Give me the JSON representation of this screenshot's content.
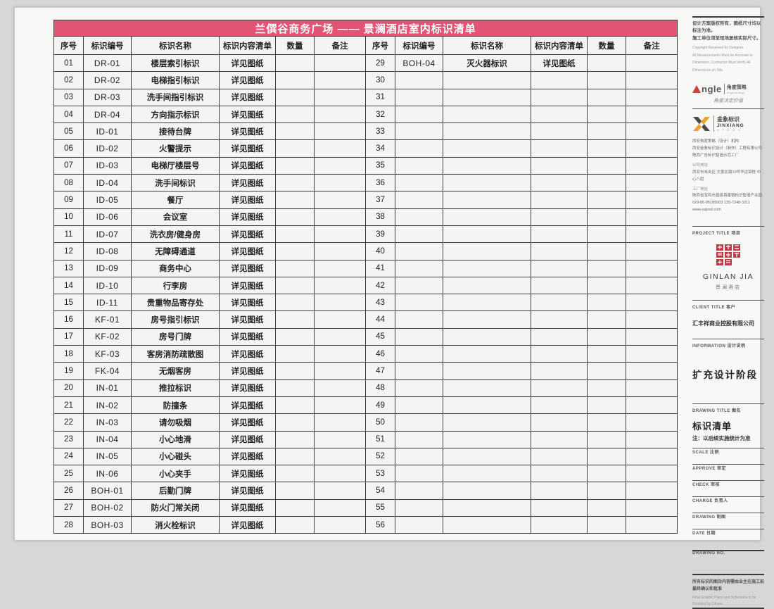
{
  "title": "兰僎谷商务广场 —— 景澜酒店室内标识清单",
  "table": {
    "columns": [
      "序号",
      "标识编号",
      "标识名称",
      "标识内容清单",
      "数量",
      "备注"
    ],
    "left_rows": [
      {
        "no": "01",
        "code": "DR-01",
        "name": "楼层索引标识",
        "content": "详见图纸"
      },
      {
        "no": "02",
        "code": "DR-02",
        "name": "电梯指引标识",
        "content": "详见图纸"
      },
      {
        "no": "03",
        "code": "DR-03",
        "name": "洗手间指引标识",
        "content": "详见图纸"
      },
      {
        "no": "04",
        "code": "DR-04",
        "name": "方向指示标识",
        "content": "详见图纸"
      },
      {
        "no": "05",
        "code": "ID-01",
        "name": "接待台牌",
        "content": "详见图纸"
      },
      {
        "no": "06",
        "code": "ID-02",
        "name": "火警提示",
        "content": "详见图纸"
      },
      {
        "no": "07",
        "code": "ID-03",
        "name": "电梯厅楼层号",
        "content": "详见图纸"
      },
      {
        "no": "08",
        "code": "ID-04",
        "name": "洗手间标识",
        "content": "详见图纸"
      },
      {
        "no": "09",
        "code": "ID-05",
        "name": "餐厅",
        "content": "详见图纸"
      },
      {
        "no": "10",
        "code": "ID-06",
        "name": "会议室",
        "content": "详见图纸"
      },
      {
        "no": "11",
        "code": "ID-07",
        "name": "洗衣房/健身房",
        "content": "详见图纸"
      },
      {
        "no": "12",
        "code": "ID-08",
        "name": "无障碍通道",
        "content": "详见图纸"
      },
      {
        "no": "13",
        "code": "ID-09",
        "name": "商务中心",
        "content": "详见图纸"
      },
      {
        "no": "14",
        "code": "ID-10",
        "name": "行李房",
        "content": "详见图纸"
      },
      {
        "no": "15",
        "code": "ID-11",
        "name": "贵重物品寄存处",
        "content": "详见图纸"
      },
      {
        "no": "16",
        "code": "KF-01",
        "name": "房号指引标识",
        "content": "详见图纸"
      },
      {
        "no": "17",
        "code": "KF-02",
        "name": "房号门牌",
        "content": "详见图纸"
      },
      {
        "no": "18",
        "code": "KF-03",
        "name": "客房消防疏散图",
        "content": "详见图纸"
      },
      {
        "no": "19",
        "code": "FK-04",
        "name": "无烟客房",
        "content": "详见图纸"
      },
      {
        "no": "20",
        "code": "IN-01",
        "name": "推拉标识",
        "content": "详见图纸"
      },
      {
        "no": "21",
        "code": "IN-02",
        "name": "防撞条",
        "content": "详见图纸"
      },
      {
        "no": "22",
        "code": "IN-03",
        "name": "请勿吸烟",
        "content": "详见图纸"
      },
      {
        "no": "23",
        "code": "IN-04",
        "name": "小心地滑",
        "content": "详见图纸"
      },
      {
        "no": "24",
        "code": "IN-05",
        "name": "小心碰头",
        "content": "详见图纸"
      },
      {
        "no": "25",
        "code": "IN-06",
        "name": "小心夹手",
        "content": "详见图纸"
      },
      {
        "no": "26",
        "code": "BOH-01",
        "name": "后勤门牌",
        "content": "详见图纸"
      },
      {
        "no": "27",
        "code": "BOH-02",
        "name": "防火门常关闭",
        "content": "详见图纸"
      },
      {
        "no": "28",
        "code": "BOH-03",
        "name": "消火栓标识",
        "content": "详见图纸"
      }
    ],
    "right_rows": [
      {
        "no": "29",
        "code": "BOH-04",
        "name": "灭火器标识",
        "content": "详见图纸"
      },
      {
        "no": "30",
        "code": "",
        "name": "",
        "content": ""
      },
      {
        "no": "31",
        "code": "",
        "name": "",
        "content": ""
      },
      {
        "no": "32",
        "code": "",
        "name": "",
        "content": ""
      },
      {
        "no": "33",
        "code": "",
        "name": "",
        "content": ""
      },
      {
        "no": "34",
        "code": "",
        "name": "",
        "content": ""
      },
      {
        "no": "35",
        "code": "",
        "name": "",
        "content": ""
      },
      {
        "no": "36",
        "code": "",
        "name": "",
        "content": ""
      },
      {
        "no": "37",
        "code": "",
        "name": "",
        "content": ""
      },
      {
        "no": "38",
        "code": "",
        "name": "",
        "content": ""
      },
      {
        "no": "39",
        "code": "",
        "name": "",
        "content": ""
      },
      {
        "no": "40",
        "code": "",
        "name": "",
        "content": ""
      },
      {
        "no": "41",
        "code": "",
        "name": "",
        "content": ""
      },
      {
        "no": "42",
        "code": "",
        "name": "",
        "content": ""
      },
      {
        "no": "43",
        "code": "",
        "name": "",
        "content": ""
      },
      {
        "no": "44",
        "code": "",
        "name": "",
        "content": ""
      },
      {
        "no": "45",
        "code": "",
        "name": "",
        "content": ""
      },
      {
        "no": "46",
        "code": "",
        "name": "",
        "content": ""
      },
      {
        "no": "47",
        "code": "",
        "name": "",
        "content": ""
      },
      {
        "no": "48",
        "code": "",
        "name": "",
        "content": ""
      },
      {
        "no": "49",
        "code": "",
        "name": "",
        "content": ""
      },
      {
        "no": "50",
        "code": "",
        "name": "",
        "content": ""
      },
      {
        "no": "51",
        "code": "",
        "name": "",
        "content": ""
      },
      {
        "no": "52",
        "code": "",
        "name": "",
        "content": ""
      },
      {
        "no": "53",
        "code": "",
        "name": "",
        "content": ""
      },
      {
        "no": "54",
        "code": "",
        "name": "",
        "content": ""
      },
      {
        "no": "55",
        "code": "",
        "name": "",
        "content": ""
      },
      {
        "no": "56",
        "code": "",
        "name": "",
        "content": ""
      }
    ]
  },
  "sidebar": {
    "top_note_cn1": "设计方案版权所有，图纸尺寸均以标注为准。",
    "top_note_cn2": "施工单位须至现场复核实际尺寸。",
    "top_note_en1": "Copyright Reserved by Designer.",
    "top_note_en2": "All Measurements Must be Accurate to",
    "top_note_en3": "Dimension. Contractor Must Verify All",
    "top_note_en4": "Dimensions on Site.",
    "angle_logo": {
      "wordmark": "ngle",
      "cn": "角度策略",
      "en": "Angle strategy",
      "slogan": "角度决定价值"
    },
    "jinxiang_logo": {
      "cn": "金象标识",
      "en": "JINXIANG",
      "sub": "S I G N S"
    },
    "company": {
      "line1": "西安角度策略（设计）机构",
      "line2": "西安金象标识设计（制作）工程有限公司",
      "line3": "陕西广告标识智造示范工厂",
      "addr_label1": "公司地址",
      "addr1": "西安市未央区 文景北路19号华远锦悦 中心八层",
      "addr_label2": "工厂地址",
      "addr2": "陕西省宝鸡市眉县首善镇标识智造产业园",
      "phone": "029-86-86185003  135-7248-3211",
      "web": "www.xajxsd.com"
    },
    "project": {
      "label": "PROJECT TITLE 项目",
      "brand": "GINLAN JIA",
      "brand_cn": "景澜酒店"
    },
    "client": {
      "label": "CLIENT TITLE 客户",
      "name": "汇丰祥商业控股有限公司"
    },
    "information": {
      "label": "INFORMATION 设计说明",
      "value": "扩充设计阶段"
    },
    "drawing_title": {
      "label": "DRAWING TITLE 图名",
      "value": "标识清单",
      "note": "注：以后续实施统计为准"
    },
    "fields": [
      {
        "label": "SCALE 比例"
      },
      {
        "label": "APPROVE 审定"
      },
      {
        "label": "CHECK 审核"
      },
      {
        "label": "CHARGE 负责人"
      },
      {
        "label": "DRAWING 制图"
      },
      {
        "label": "DATE 日期"
      },
      {
        "label": "DRAWING NO."
      }
    ],
    "bottom_note_cn": "所有标识的图及内容需由业主在施工前最终确认和批准",
    "bottom_note_en": "Final Graphic Plans and Schedules to be Provided by Others."
  },
  "colors": {
    "header_pink": "#e25374",
    "accent_red": "#d93a3a",
    "accent_orange": "#f09f2e",
    "seal_red": "#c23a48"
  }
}
